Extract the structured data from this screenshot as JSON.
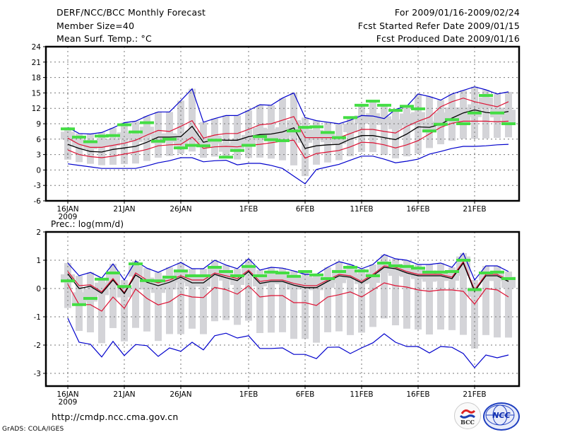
{
  "header": {
    "title": "DERF/NCC/BCC Monthly Forecast",
    "member_size": "Member Size=40",
    "variable_top": "Mean Surf. Temp.: °C",
    "period": "For 2009/01/16-2009/02/24",
    "started": "Fcst Started Refer Date 2009/01/15",
    "produced": "Fcst Produced Date 2009/01/16"
  },
  "footer": {
    "url": "http://cmdp.ncc.cma.gov.cn",
    "grads": "GrADS: COLA/IGES",
    "logo_bcc": "BCC",
    "logo_ncc": "NCC"
  },
  "colors": {
    "max_min": "#0000cc",
    "percentile": "#dd1133",
    "mean": "#000000",
    "obs": "#44dd44",
    "box": "#d4d4d8",
    "grid": "#777777"
  },
  "chart_data": [
    {
      "type": "line",
      "title": "Mean Surf. Temp.: °C",
      "xlabel": "",
      "ylabel": "",
      "ylim": [
        -6,
        24
      ],
      "yticks": [
        -6,
        -3,
        0,
        3,
        6,
        9,
        12,
        15,
        18,
        21,
        24
      ],
      "xtick_labels": [
        "16JAN",
        "21JAN",
        "26JAN",
        "1FEB",
        "6FEB",
        "11FEB",
        "16FEB",
        "21FEB"
      ],
      "xtick_index": [
        0,
        5,
        10,
        16,
        21,
        26,
        31,
        36
      ],
      "year_label": "2009",
      "grid": true,
      "n_days": 40,
      "series": [
        {
          "name": "max",
          "values": [
            8.3,
            7.1,
            7.0,
            7.3,
            8.2,
            9.2,
            9.5,
            10.5,
            11.3,
            11.3,
            13.5,
            15.8,
            9.3,
            10.0,
            10.6,
            10.6,
            11.6,
            12.7,
            12.6,
            14.0,
            15.0,
            10.2,
            9.6,
            9.3,
            9.0,
            9.7,
            10.6,
            10.5,
            10.0,
            11.8,
            12.4,
            14.8,
            14.3,
            13.6,
            14.8,
            15.5,
            16.2,
            15.6,
            14.8,
            15.2
          ]
        },
        {
          "name": "p_upper",
          "values": [
            6.2,
            5.0,
            4.4,
            4.4,
            4.8,
            5.2,
            5.8,
            6.8,
            7.7,
            7.5,
            8.5,
            9.6,
            6.2,
            6.8,
            7.1,
            7.1,
            7.9,
            8.8,
            9.0,
            9.7,
            10.4,
            6.3,
            6.3,
            6.3,
            6.3,
            7.1,
            7.9,
            7.9,
            7.5,
            7.2,
            8.5,
            9.5,
            10.3,
            12.3,
            13.3,
            14.0,
            13.3,
            12.8,
            12.3,
            13.3
          ]
        },
        {
          "name": "mean",
          "values": [
            5.0,
            4.2,
            3.6,
            3.5,
            4.0,
            4.3,
            4.6,
            5.4,
            6.4,
            6.4,
            6.5,
            8.5,
            5.4,
            5.9,
            5.8,
            5.8,
            6.5,
            6.9,
            7.0,
            7.4,
            8.2,
            4.2,
            4.7,
            4.9,
            5.0,
            6.0,
            6.7,
            6.7,
            6.3,
            5.9,
            7.0,
            8.4,
            8.3,
            8.9,
            10.1,
            11.1,
            11.7,
            11.2,
            11.0,
            11.4
          ]
        },
        {
          "name": "p_lower",
          "values": [
            3.9,
            3.0,
            2.6,
            2.4,
            2.7,
            3.1,
            3.5,
            4.0,
            4.7,
            4.9,
            5.0,
            6.4,
            4.2,
            4.5,
            4.6,
            4.5,
            4.8,
            5.0,
            5.3,
            5.6,
            5.8,
            2.3,
            3.2,
            3.5,
            3.8,
            4.5,
            5.4,
            5.3,
            4.9,
            4.3,
            4.9,
            5.7,
            7.0,
            8.3,
            9.1,
            9.5,
            9.5,
            9.5,
            9.4,
            9.5
          ]
        },
        {
          "name": "min",
          "values": [
            1.2,
            0.9,
            0.6,
            0.3,
            0.3,
            0.3,
            0.3,
            0.8,
            1.4,
            1.8,
            2.4,
            2.4,
            1.6,
            1.8,
            1.9,
            1.0,
            1.3,
            1.3,
            0.9,
            0.3,
            -1.2,
            -2.7,
            0.1,
            0.6,
            1.1,
            1.9,
            2.7,
            2.7,
            2.1,
            1.4,
            1.7,
            2.1,
            3.1,
            3.6,
            4.2,
            4.6,
            4.6,
            4.7,
            4.9,
            5.0
          ]
        },
        {
          "name": "observed",
          "values": [
            8.0,
            6.4,
            5.5,
            6.6,
            6.7,
            8.8,
            7.4,
            9.2,
            5.6,
            6.0,
            4.3,
            4.8,
            4.7,
            5.8,
            2.5,
            3.8,
            4.8,
            6.5,
            5.9,
            5.7,
            7.6,
            8.3,
            8.4,
            7.3,
            6.3,
            10.2,
            12.6,
            13.4,
            12.6,
            11.6,
            12.4,
            11.9,
            7.6,
            8.9,
            9.8,
            9.0,
            11.1,
            14.5,
            11.1,
            9.0
          ]
        }
      ]
    },
    {
      "type": "line",
      "title": "Prec.: log(mm/d)",
      "xlabel": "",
      "ylabel": "",
      "ylim": [
        -3.45,
        2
      ],
      "yticks": [
        -3,
        -2,
        -1,
        0,
        1,
        2
      ],
      "xtick_labels": [
        "16JAN",
        "21JAN",
        "26JAN",
        "1FEB",
        "6FEB",
        "11FEB",
        "16FEB",
        "21FEB"
      ],
      "xtick_index": [
        0,
        5,
        10,
        16,
        21,
        26,
        31,
        36
      ],
      "year_label": "2009",
      "grid": true,
      "n_days": 40,
      "series": [
        {
          "name": "max",
          "values": [
            0.9,
            0.45,
            0.57,
            0.37,
            0.87,
            0.3,
            0.97,
            0.72,
            0.57,
            0.75,
            0.92,
            0.7,
            0.7,
            1.0,
            0.83,
            0.7,
            1.05,
            0.65,
            0.75,
            0.72,
            0.62,
            0.5,
            0.5,
            0.75,
            0.95,
            0.85,
            0.7,
            0.85,
            1.2,
            1.05,
            1.0,
            0.85,
            0.85,
            0.9,
            0.75,
            1.25,
            0.3,
            0.8,
            0.8,
            0.6
          ]
        },
        {
          "name": "p_upper",
          "values": [
            0.6,
            0.1,
            0.13,
            -0.12,
            0.35,
            -0.15,
            0.55,
            0.3,
            0.2,
            0.3,
            0.45,
            0.3,
            0.3,
            0.55,
            0.45,
            0.35,
            0.65,
            0.25,
            0.3,
            0.3,
            0.18,
            0.1,
            0.1,
            0.3,
            0.5,
            0.45,
            0.25,
            0.5,
            0.8,
            0.75,
            0.6,
            0.5,
            0.5,
            0.5,
            0.4,
            0.95,
            -0.05,
            0.5,
            0.5,
            0.3
          ]
        },
        {
          "name": "mean",
          "values": [
            0.52,
            0.0,
            0.08,
            -0.17,
            0.3,
            -0.18,
            0.48,
            0.22,
            0.1,
            0.22,
            0.4,
            0.2,
            0.2,
            0.5,
            0.38,
            0.28,
            0.6,
            0.18,
            0.25,
            0.25,
            0.12,
            0.03,
            0.03,
            0.25,
            0.45,
            0.4,
            0.2,
            0.45,
            0.75,
            0.7,
            0.55,
            0.45,
            0.45,
            0.45,
            0.35,
            0.9,
            -0.1,
            0.45,
            0.45,
            0.25
          ]
        },
        {
          "name": "p_lower",
          "values": [
            0.15,
            -0.57,
            -0.57,
            -0.8,
            -0.3,
            -0.7,
            -0.02,
            -0.35,
            -0.58,
            -0.47,
            -0.2,
            -0.3,
            -0.32,
            0.04,
            -0.04,
            -0.2,
            0.1,
            -0.3,
            -0.25,
            -0.25,
            -0.5,
            -0.5,
            -0.6,
            -0.3,
            -0.22,
            -0.12,
            -0.3,
            -0.05,
            0.2,
            0.1,
            0.05,
            -0.05,
            -0.1,
            -0.05,
            -0.05,
            -0.1,
            -0.55,
            0.0,
            -0.05,
            -0.3
          ]
        },
        {
          "name": "min",
          "values": [
            -1.05,
            -1.9,
            -1.97,
            -2.42,
            -1.87,
            -2.37,
            -1.98,
            -2.02,
            -2.4,
            -2.1,
            -2.22,
            -1.9,
            -2.17,
            -1.67,
            -1.58,
            -1.75,
            -1.67,
            -2.12,
            -2.12,
            -2.1,
            -2.33,
            -2.33,
            -2.48,
            -2.08,
            -2.07,
            -2.3,
            -2.1,
            -1.92,
            -1.6,
            -1.9,
            -2.05,
            -2.05,
            -2.28,
            -2.05,
            -2.08,
            -2.3,
            -2.8,
            -2.35,
            -2.45,
            -2.35
          ]
        },
        {
          "name": "observed",
          "values": [
            0.27,
            -0.57,
            -0.35,
            0.33,
            0.55,
            0.07,
            0.87,
            0.28,
            0.27,
            0.4,
            0.62,
            0.45,
            0.45,
            0.75,
            0.6,
            0.45,
            0.78,
            0.45,
            0.58,
            0.55,
            0.43,
            0.6,
            0.48,
            0.35,
            0.6,
            0.75,
            0.62,
            0.45,
            0.9,
            0.8,
            0.78,
            0.72,
            0.58,
            0.58,
            0.6,
            1.0,
            -0.04,
            0.55,
            0.58,
            0.35
          ]
        }
      ]
    }
  ]
}
